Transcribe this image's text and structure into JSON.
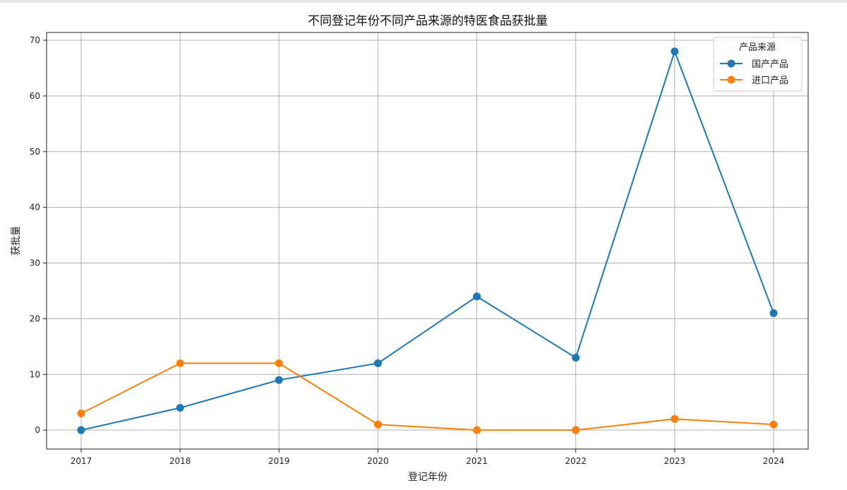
{
  "chart_data": {
    "type": "line",
    "title": "不同登记年份不同产品来源的特医食品获批量",
    "xlabel": "登记年份",
    "ylabel": "获批量",
    "x": [
      "2017",
      "2018",
      "2019",
      "2020",
      "2021",
      "2022",
      "2023",
      "2024"
    ],
    "yticks": [
      0,
      10,
      20,
      30,
      40,
      50,
      60,
      70
    ],
    "ylim": [
      -3.4,
      71.4
    ],
    "grid": true,
    "legend": {
      "title": "产品来源",
      "placement": "top-right"
    },
    "series": [
      {
        "name": "国产产品",
        "color": "#1f77b4",
        "marker": "circle",
        "values": [
          0,
          4,
          9,
          12,
          24,
          13,
          68,
          21
        ]
      },
      {
        "name": "进口产品",
        "color": "#ff7f0e",
        "marker": "circle",
        "values": [
          3,
          12,
          12,
          1,
          0,
          0,
          2,
          1
        ]
      }
    ]
  }
}
